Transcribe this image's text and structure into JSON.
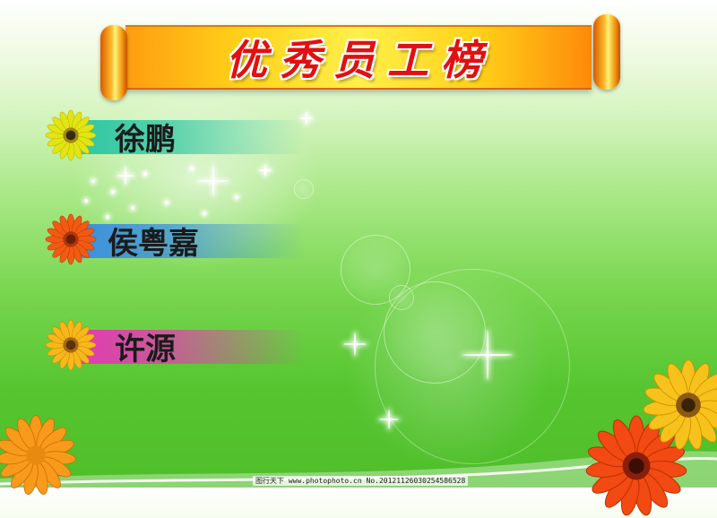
{
  "banner": {
    "title": "优秀员工榜"
  },
  "employees": [
    {
      "name": "徐鹏",
      "bar_color": "#2fc6a4",
      "flower_color": "#e3e414",
      "flower_center": "#3a2a10"
    },
    {
      "name": "侯粤嘉",
      "bar_color": "#3b8fe0",
      "flower_color": "#f25a14",
      "flower_center": "#6a1e0a"
    },
    {
      "name": "许源",
      "bar_color": "#e43ab2",
      "flower_color": "#f8b81c",
      "flower_center": "#5a3210"
    }
  ],
  "watermark": "图行天下 www.photophoto.cn   No.20121126030254586528",
  "colors": {
    "background_top": "#ffffff",
    "background_bottom": "#4fbe2a",
    "title_red": "#e21010",
    "scroll_gold": "#ffd21a"
  }
}
